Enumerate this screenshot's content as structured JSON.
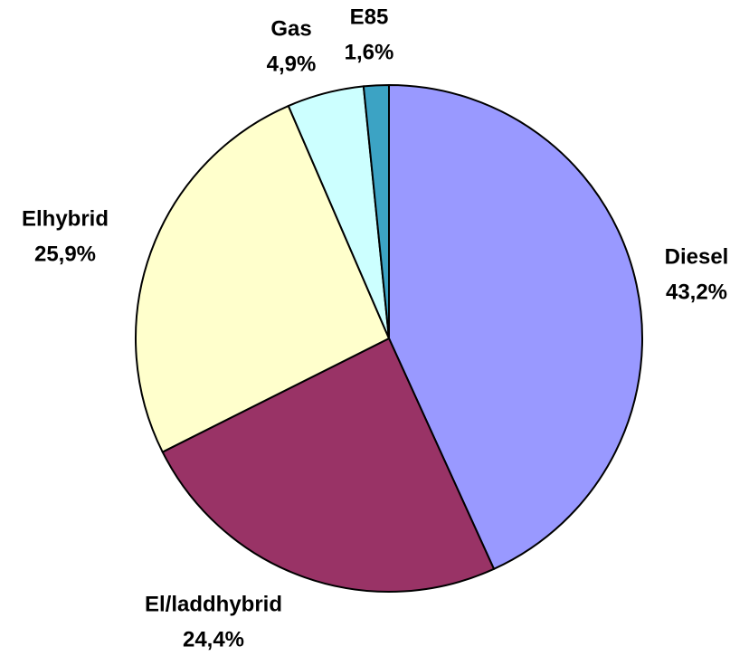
{
  "chart_data": {
    "type": "pie",
    "categories": [
      "Diesel",
      "El/laddhybrid",
      "Elhybrid",
      "Gas",
      "E85"
    ],
    "values": [
      43.2,
      24.4,
      25.9,
      4.9,
      1.6
    ],
    "value_labels": [
      "43,2%",
      "24,4%",
      "25,9%",
      "4,9%",
      "1,6%"
    ],
    "colors": [
      "#9999ff",
      "#993366",
      "#ffffcc",
      "#ccffff",
      "#3ca3c4"
    ]
  }
}
